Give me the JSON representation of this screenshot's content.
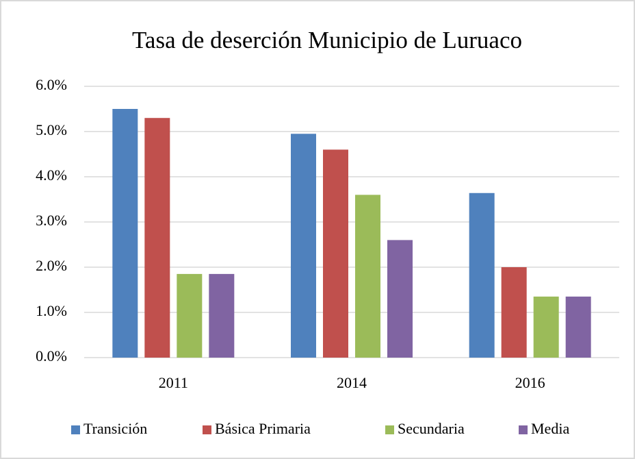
{
  "chart_data": {
    "type": "bar",
    "title": "Tasa de deserción Municipio de Luruaco",
    "categories": [
      "2011",
      "2014",
      "2016"
    ],
    "series": [
      {
        "name": "Transición",
        "color": "#4f81bd",
        "values": [
          5.5,
          4.95,
          3.64
        ]
      },
      {
        "name": "Básica Primaria",
        "color": "#c0504d",
        "values": [
          5.3,
          4.6,
          2.0
        ]
      },
      {
        "name": "Secundaria",
        "color": "#9bbb59",
        "values": [
          1.85,
          3.6,
          1.35
        ]
      },
      {
        "name": "Media",
        "color": "#8064a2",
        "values": [
          1.85,
          2.6,
          1.35
        ]
      }
    ],
    "ylim": [
      0,
      6
    ],
    "yticks": [
      {
        "value": 0,
        "label": "0.0%"
      },
      {
        "value": 1,
        "label": "1.0%"
      },
      {
        "value": 2,
        "label": "2.0%"
      },
      {
        "value": 3,
        "label": "3.0%"
      },
      {
        "value": 4,
        "label": "4.0%"
      },
      {
        "value": 5,
        "label": "5.0%"
      },
      {
        "value": 6,
        "label": "6.0%"
      }
    ],
    "grid": true,
    "legend": "bottom"
  }
}
